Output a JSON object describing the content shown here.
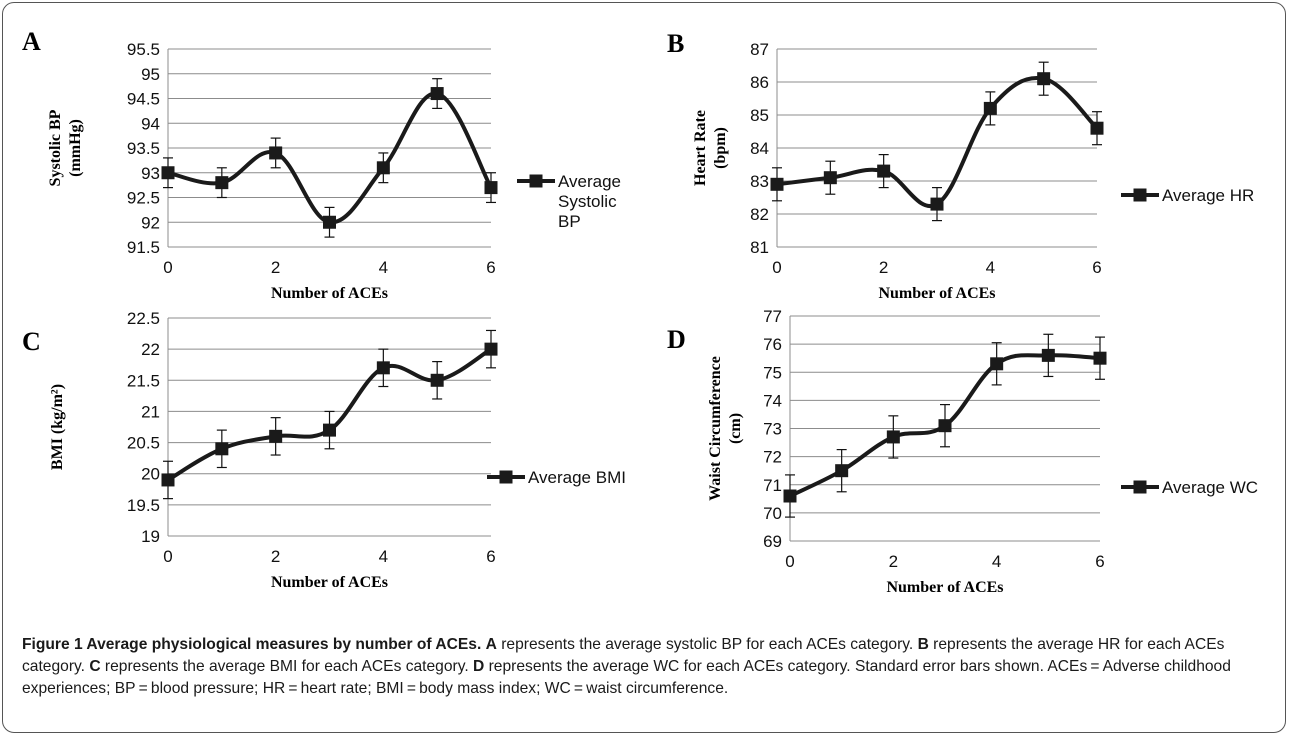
{
  "chart_data": [
    {
      "type": "line",
      "panel": "A",
      "categories": [
        0,
        1,
        2,
        3,
        4,
        5,
        6
      ],
      "series": [
        {
          "name": "Average Systolic BP",
          "values": [
            93.0,
            92.8,
            93.4,
            92.0,
            93.1,
            94.6,
            92.7
          ],
          "errors": [
            0.3,
            0.3,
            0.3,
            0.3,
            0.3,
            0.3,
            0.3
          ]
        }
      ],
      "legend_lines": [
        "Average",
        "Systolic",
        "BP"
      ],
      "xlabel": "Number of ACEs",
      "ylabel_lines": [
        "Systolic BP",
        "(mmHg)"
      ],
      "ylim": [
        91.5,
        95.5
      ],
      "yticks": [
        "91.5",
        "92",
        "92.5",
        "93",
        "93.5",
        "94",
        "94.5",
        "95",
        "95.5"
      ],
      "xticks": [
        "0",
        "2",
        "4",
        "6"
      ],
      "grid": true,
      "legend_position": "right"
    },
    {
      "type": "line",
      "panel": "B",
      "categories": [
        0,
        1,
        2,
        3,
        4,
        5,
        6
      ],
      "series": [
        {
          "name": "Average HR",
          "values": [
            82.9,
            83.1,
            83.3,
            82.3,
            85.2,
            86.1,
            84.6
          ],
          "errors": [
            0.5,
            0.5,
            0.5,
            0.5,
            0.5,
            0.5,
            0.5
          ]
        }
      ],
      "legend_lines": [
        "Average HR"
      ],
      "xlabel": "Number of ACEs",
      "ylabel_lines": [
        "Heart Rate",
        "(bpm)"
      ],
      "ylim": [
        81,
        87
      ],
      "yticks": [
        "81",
        "82",
        "83",
        "84",
        "85",
        "86",
        "87"
      ],
      "xticks": [
        "0",
        "2",
        "4",
        "6"
      ],
      "grid": true,
      "legend_position": "right"
    },
    {
      "type": "line",
      "panel": "C",
      "categories": [
        0,
        1,
        2,
        3,
        4,
        5,
        6
      ],
      "series": [
        {
          "name": "Average BMI",
          "values": [
            19.9,
            20.4,
            20.6,
            20.7,
            21.7,
            21.5,
            22.0
          ],
          "errors": [
            0.3,
            0.3,
            0.3,
            0.3,
            0.3,
            0.3,
            0.3
          ]
        }
      ],
      "legend_lines": [
        "Average BMI"
      ],
      "xlabel": "Number of ACEs",
      "ylabel_lines": [
        "BMI (kg/m²)"
      ],
      "ylim": [
        19,
        22.5
      ],
      "yticks": [
        "19",
        "19.5",
        "20",
        "20.5",
        "21",
        "21.5",
        "22",
        "22.5"
      ],
      "xticks": [
        "0",
        "2",
        "4",
        "6"
      ],
      "grid": true,
      "legend_position": "right"
    },
    {
      "type": "line",
      "panel": "D",
      "categories": [
        0,
        1,
        2,
        3,
        4,
        5,
        6
      ],
      "series": [
        {
          "name": "Average WC",
          "values": [
            70.6,
            71.5,
            72.7,
            73.1,
            75.3,
            75.6,
            75.5
          ],
          "errors": [
            0.75,
            0.75,
            0.75,
            0.75,
            0.75,
            0.75,
            0.75
          ]
        }
      ],
      "legend_lines": [
        "Average WC"
      ],
      "xlabel": "Number of ACEs",
      "ylabel_lines": [
        "Waist Circumference",
        "(cm)"
      ],
      "ylim": [
        69,
        77
      ],
      "yticks": [
        "69",
        "70",
        "71",
        "72",
        "73",
        "74",
        "75",
        "76",
        "77"
      ],
      "xticks": [
        "0",
        "2",
        "4",
        "6"
      ],
      "grid": true,
      "legend_position": "right"
    }
  ],
  "caption": {
    "figure_label": "Figure 1 Average physiological measures by number of ACEs.",
    "parts": [
      {
        "label": "A",
        "text": " represents the average systolic BP for each ACEs category. "
      },
      {
        "label": "B",
        "text": " represents the average HR for each ACEs category. "
      },
      {
        "label": "C",
        "text": " represents the average BMI for each ACEs category. "
      },
      {
        "label": "D",
        "text": " represents the average WC for each ACEs category. Standard error bars shown. ACEs = Adverse childhood experiences; BP = blood pressure; HR = heart rate; BMI = body mass index; WC = waist circumference."
      }
    ]
  }
}
